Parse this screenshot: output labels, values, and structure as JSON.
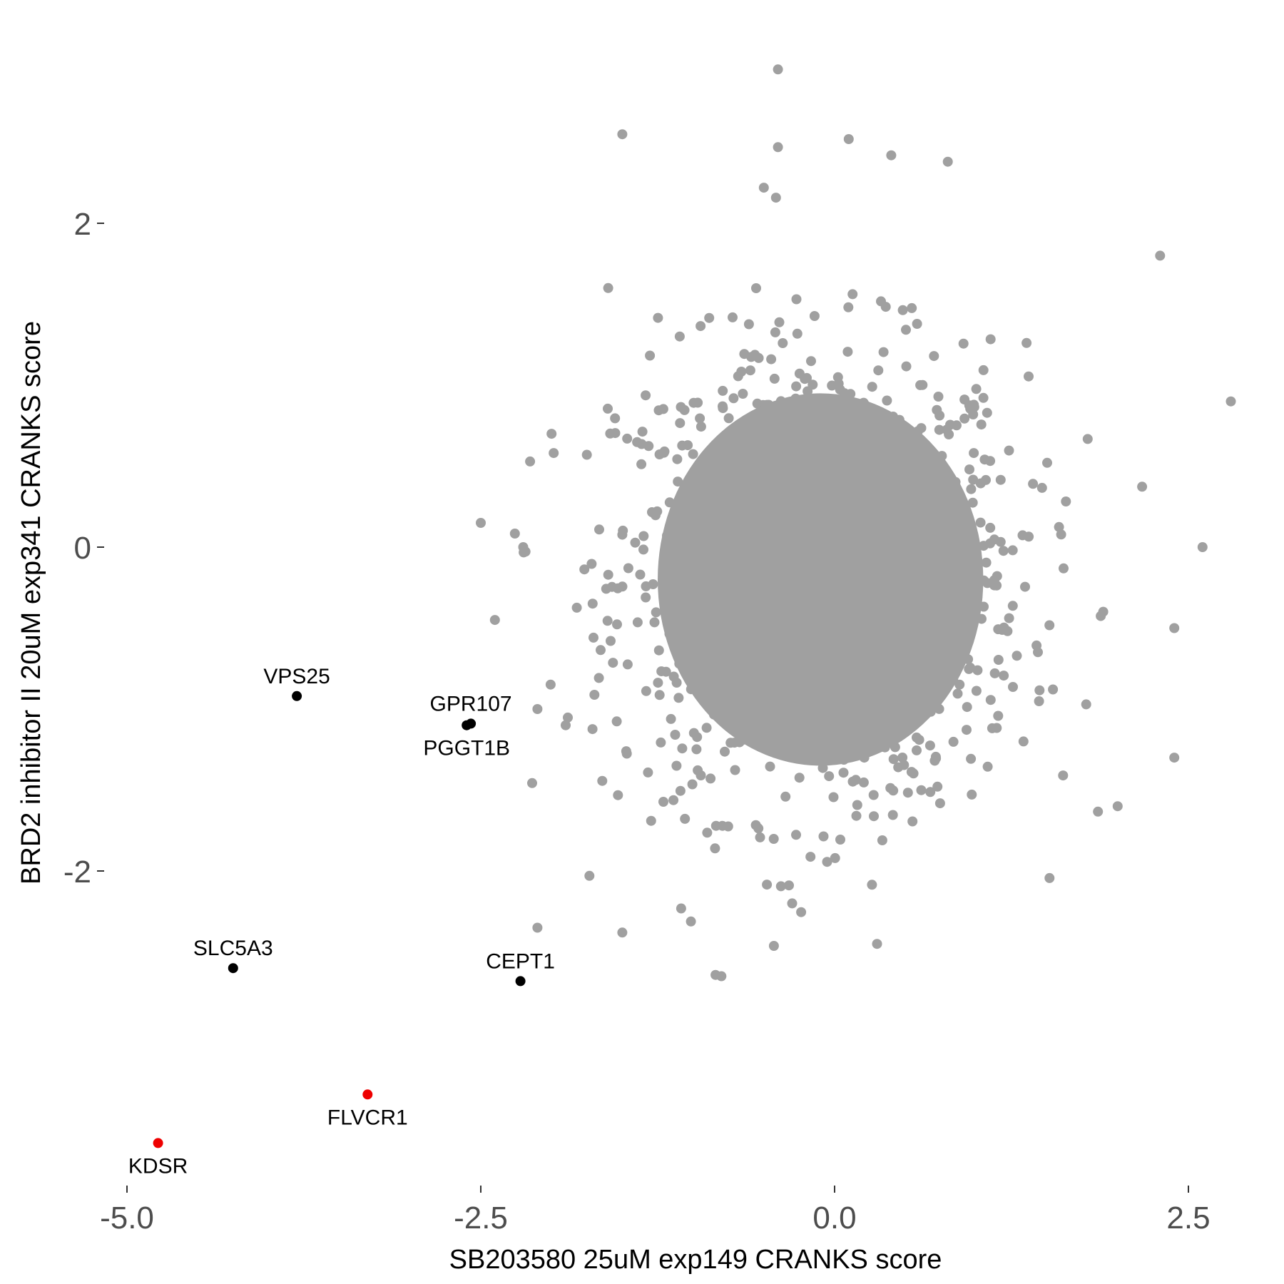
{
  "chart_data": {
    "type": "scatter",
    "xlabel": "SB203580 25uM exp149 CRANKS score",
    "ylabel": "BRD2 inhibitor II 20uM exp341 CRANKS score",
    "xlim": [
      -5.0,
      2.8
    ],
    "ylim": [
      -3.8,
      3.0
    ],
    "x_ticks": [
      -5.0,
      -2.5,
      0.0,
      2.5
    ],
    "x_tick_labels": [
      "-5.0",
      "-2.5",
      "0.0",
      "2.5"
    ],
    "y_ticks": [
      -2,
      0,
      2
    ],
    "y_tick_labels": [
      "-2",
      "0",
      "2"
    ],
    "grid": false,
    "legend": "none",
    "colors": {
      "background": "#a0a0a0",
      "highlight": "#000000",
      "strong": "#ee0000"
    },
    "background_cloud": {
      "description_count": 1200,
      "center": [
        -0.1,
        -0.2
      ],
      "outliers": [
        [
          -0.4,
          2.95
        ],
        [
          -1.5,
          2.55
        ],
        [
          0.1,
          2.52
        ],
        [
          -0.4,
          2.47
        ],
        [
          0.4,
          2.42
        ],
        [
          0.8,
          2.38
        ],
        [
          -0.5,
          2.22
        ],
        [
          2.3,
          1.8
        ],
        [
          -1.6,
          1.6
        ],
        [
          2.8,
          0.9
        ],
        [
          2.6,
          0.0
        ],
        [
          2.4,
          -0.5
        ],
        [
          2.4,
          -1.3
        ],
        [
          2.0,
          -1.6
        ],
        [
          -0.8,
          -2.65
        ],
        [
          -0.3,
          -2.2
        ],
        [
          0.3,
          -2.45
        ],
        [
          -2.1,
          -2.35
        ],
        [
          -1.5,
          -2.38
        ],
        [
          -2.4,
          -0.45
        ],
        [
          -2.5,
          0.15
        ],
        [
          -2.2,
          0.0
        ],
        [
          -2.0,
          0.7
        ],
        [
          -1.9,
          -1.1
        ],
        [
          -2.1,
          -1.0
        ]
      ]
    },
    "labeled_points": [
      {
        "label": "VPS25",
        "x": -3.8,
        "y": -0.92,
        "color": "#000000",
        "label_pos": "above"
      },
      {
        "label": "GPR107",
        "x": -2.57,
        "y": -1.09,
        "color": "#000000",
        "label_pos": "above"
      },
      {
        "label": "PGGT1B",
        "x": -2.6,
        "y": -1.1,
        "color": "#000000",
        "label_pos": "below"
      },
      {
        "label": "SLC5A3",
        "x": -4.25,
        "y": -2.6,
        "color": "#000000",
        "label_pos": "above"
      },
      {
        "label": "CEPT1",
        "x": -2.22,
        "y": -2.68,
        "color": "#000000",
        "label_pos": "above"
      },
      {
        "label": "FLVCR1",
        "x": -3.3,
        "y": -3.38,
        "color": "#ee0000",
        "label_pos": "below"
      },
      {
        "label": "KDSR",
        "x": -4.78,
        "y": -3.68,
        "color": "#ee0000",
        "label_pos": "below"
      }
    ]
  }
}
